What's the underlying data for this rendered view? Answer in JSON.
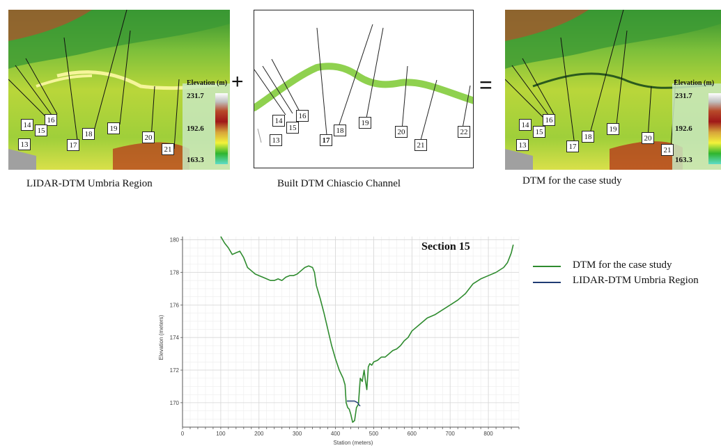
{
  "panels": {
    "lidar": {
      "caption": "LIDAR-DTM Umbria Region",
      "legend_title": "Elevation (m)",
      "legend_values": [
        "231.7",
        "192.6",
        "163.3"
      ]
    },
    "built": {
      "caption": "Built DTM Chiascio Channel"
    },
    "case": {
      "caption": "DTM for the case study",
      "legend_title": "Elevation (m)",
      "legend_values": [
        "231.7",
        "192.6",
        "163.3"
      ]
    }
  },
  "operators": {
    "plus": "+",
    "equals": "="
  },
  "section_labels": {
    "lidar": [
      "14",
      "16",
      "15",
      "13",
      "18",
      "17",
      "19",
      "20",
      "21"
    ],
    "built": [
      "14",
      "16",
      "15",
      "13",
      "18",
      "17",
      "19",
      "20",
      "21",
      "22"
    ],
    "case": [
      "14",
      "16",
      "15",
      "13",
      "18",
      "17",
      "19",
      "20",
      "21"
    ]
  },
  "colors": {
    "dtm_case_study": "#2e8b2e",
    "lidar_dtm": "#1f3b73",
    "channel": "#8fd14f"
  },
  "chart_data": {
    "type": "line",
    "title": "Section 15",
    "xlabel": "Station (meters)",
    "ylabel": "Elevation (meters)",
    "xlim": [
      0,
      880
    ],
    "ylim": [
      168.5,
      180.2
    ],
    "xticks": [
      0,
      100,
      200,
      300,
      400,
      500,
      600,
      700,
      800
    ],
    "yticks": [
      170,
      172,
      174,
      176,
      178,
      180
    ],
    "grid": true,
    "legend_position": "right",
    "series": [
      {
        "name": "DTM for the case study",
        "color": "#2e8b2e",
        "x": [
          100,
          110,
          120,
          130,
          140,
          150,
          160,
          170,
          180,
          190,
          200,
          210,
          220,
          230,
          240,
          250,
          260,
          270,
          280,
          290,
          300,
          310,
          320,
          330,
          340,
          345,
          350,
          360,
          370,
          380,
          390,
          400,
          410,
          420,
          425,
          428,
          432,
          436,
          440,
          445,
          450,
          455,
          460,
          465,
          470,
          475,
          478,
          482,
          486,
          490,
          495,
          500,
          510,
          520,
          530,
          540,
          550,
          560,
          570,
          580,
          590,
          600,
          620,
          640,
          660,
          680,
          700,
          720,
          740,
          760,
          780,
          800,
          820,
          840,
          850,
          855,
          860,
          865
        ],
        "y": [
          180.2,
          179.8,
          179.5,
          179.1,
          179.2,
          179.3,
          178.9,
          178.3,
          178.1,
          177.9,
          177.8,
          177.7,
          177.6,
          177.5,
          177.5,
          177.6,
          177.5,
          177.7,
          177.8,
          177.8,
          177.9,
          178.1,
          178.3,
          178.4,
          178.3,
          178.0,
          177.2,
          176.4,
          175.5,
          174.5,
          173.5,
          172.7,
          172.0,
          171.5,
          171.1,
          170.0,
          169.7,
          169.6,
          169.3,
          168.8,
          168.9,
          169.7,
          169.9,
          171.5,
          171.3,
          172.0,
          171.4,
          170.8,
          172.2,
          172.4,
          172.3,
          172.5,
          172.6,
          172.8,
          172.8,
          173.0,
          173.2,
          173.3,
          173.5,
          173.8,
          174.0,
          174.4,
          174.8,
          175.2,
          175.4,
          175.7,
          176.0,
          176.3,
          176.7,
          177.3,
          177.6,
          177.8,
          178.0,
          178.3,
          178.6,
          178.9,
          179.2,
          179.7
        ]
      },
      {
        "name": "LIDAR-DTM Umbria Region",
        "color": "#1f3b73",
        "x": [
          430,
          440,
          450,
          458,
          462,
          465
        ],
        "y": [
          170.1,
          170.1,
          170.1,
          170.0,
          169.85,
          169.8
        ]
      }
    ]
  }
}
